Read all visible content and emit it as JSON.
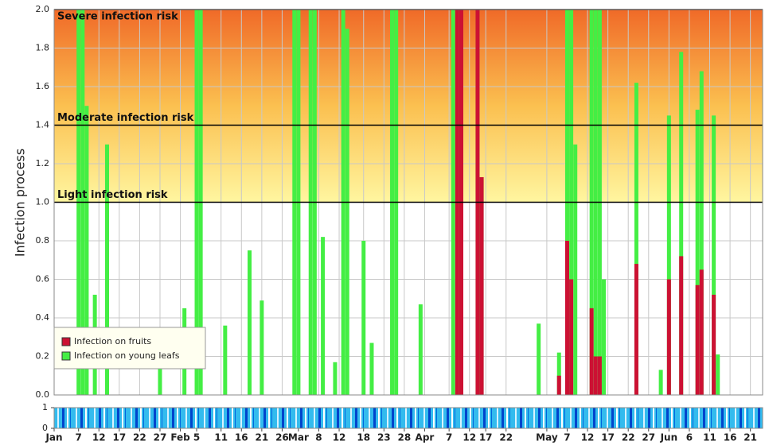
{
  "chart_data": {
    "type": "bar",
    "ylabel": "Infection process",
    "xlim": [
      1,
      175
    ],
    "ylim": [
      0,
      2
    ],
    "yticks": [
      {
        "value": 0,
        "label": "0.0"
      },
      {
        "value": 0.2,
        "label": "0.2"
      },
      {
        "value": 0.4,
        "label": "0.4"
      },
      {
        "value": 0.6,
        "label": "0.6"
      },
      {
        "value": 0.8,
        "label": "0.8"
      },
      {
        "value": 1,
        "label": "1.0"
      },
      {
        "value": 1.2,
        "label": "1.2"
      },
      {
        "value": 1.4,
        "label": "1.4"
      },
      {
        "value": 1.6,
        "label": "1.6"
      },
      {
        "value": 1.8,
        "label": "1.8"
      },
      {
        "value": 2,
        "label": "2.0"
      }
    ],
    "xticks": [
      {
        "value": 1,
        "label": "Jan"
      },
      {
        "value": 7,
        "label": "7"
      },
      {
        "value": 12,
        "label": "12"
      },
      {
        "value": 17,
        "label": "17"
      },
      {
        "value": 22,
        "label": "22"
      },
      {
        "value": 27,
        "label": "27"
      },
      {
        "value": 32,
        "label": "Feb"
      },
      {
        "value": 36,
        "label": "5"
      },
      {
        "value": 42,
        "label": "11"
      },
      {
        "value": 47,
        "label": "16"
      },
      {
        "value": 52,
        "label": "21"
      },
      {
        "value": 57,
        "label": "26"
      },
      {
        "value": 61,
        "label": "Mar"
      },
      {
        "value": 66,
        "label": "8"
      },
      {
        "value": 71,
        "label": "12"
      },
      {
        "value": 77,
        "label": "18"
      },
      {
        "value": 82,
        "label": "23"
      },
      {
        "value": 87,
        "label": "28"
      },
      {
        "value": 92,
        "label": "Apr"
      },
      {
        "value": 98,
        "label": "7"
      },
      {
        "value": 103,
        "label": "12"
      },
      {
        "value": 107,
        "label": "17"
      },
      {
        "value": 112,
        "label": "22"
      },
      {
        "value": 122,
        "label": "May"
      },
      {
        "value": 127,
        "label": "7"
      },
      {
        "value": 132,
        "label": "12"
      },
      {
        "value": 137,
        "label": "17"
      },
      {
        "value": 142,
        "label": "22"
      },
      {
        "value": 147,
        "label": "27"
      },
      {
        "value": 152,
        "label": "Jun"
      },
      {
        "value": 157,
        "label": "6"
      },
      {
        "value": 162,
        "label": "11"
      },
      {
        "value": 167,
        "label": "16"
      },
      {
        "value": 172,
        "label": "21"
      }
    ],
    "grid": true,
    "zones": [
      {
        "label": "Light infection risk",
        "value": 1.0
      },
      {
        "label": "Moderate infection risk",
        "value": 1.4
      },
      {
        "label": "Severe infection risk",
        "value": 2.0
      }
    ],
    "legend": "lower-left",
    "x": [
      7,
      8,
      9,
      11,
      14,
      27,
      33,
      36,
      37,
      43,
      49,
      52,
      60,
      61,
      64,
      65,
      67,
      70,
      72,
      73,
      77,
      79,
      84,
      85,
      91,
      99,
      100,
      101,
      105,
      106,
      120,
      125,
      127,
      128,
      129,
      133,
      134,
      135,
      136,
      144,
      150,
      152,
      155,
      159,
      160,
      163,
      164
    ],
    "series": [
      {
        "name": "Infection on young leafs",
        "color": "#44ee44",
        "values": [
          2.0,
          2.0,
          1.5,
          0.52,
          1.3,
          0.2,
          0.45,
          2.0,
          2.0,
          0.36,
          0.75,
          0.49,
          2.0,
          2.0,
          2.0,
          2.0,
          0.82,
          0.17,
          2.0,
          1.9,
          0.8,
          0.27,
          2.0,
          2.0,
          0.47,
          2.0,
          2.0,
          2.0,
          2.0,
          1.13,
          0.37,
          0.22,
          2.0,
          2.0,
          1.3,
          2.0,
          2.0,
          2.0,
          0.6,
          1.62,
          0.13,
          1.45,
          1.78,
          1.48,
          1.68,
          1.45,
          0.21
        ]
      },
      {
        "name": "Infection on fruits",
        "color": "#cc1133",
        "values": [
          0,
          0,
          0,
          0,
          0,
          0,
          0,
          0,
          0,
          0,
          0,
          0,
          0,
          0,
          0,
          0,
          0,
          0,
          0,
          0,
          0,
          0,
          0,
          0,
          0,
          0,
          2.0,
          2.0,
          2.0,
          1.13,
          0,
          0.1,
          0.8,
          0.6,
          0,
          0.45,
          0.2,
          0.2,
          0,
          0.68,
          0,
          0.6,
          0.72,
          0.57,
          0.65,
          0.52,
          0
        ]
      }
    ],
    "strip": {
      "ylim": [
        0,
        1
      ],
      "yticks": [
        0,
        1
      ]
    }
  }
}
